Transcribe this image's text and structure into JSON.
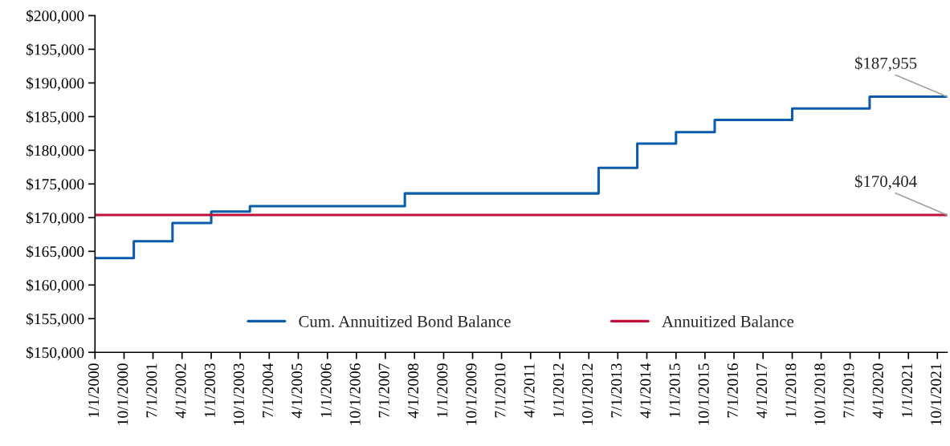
{
  "chart_data": {
    "type": "line",
    "series": [
      {
        "type": "step",
        "name": "Cum. Annuitized Bond Balance",
        "color": "#0b5cad",
        "x": [
          "2000-01-01",
          "2001-01-01",
          "2002-01-01",
          "2003-01-01",
          "2004-01-01",
          "2008-01-01",
          "2013-01-01",
          "2014-01-01",
          "2015-01-01",
          "2016-01-01",
          "2018-01-01",
          "2020-01-01",
          "2022-01-01"
        ],
        "values": [
          164000,
          166500,
          169200,
          170900,
          171700,
          173600,
          177400,
          181000,
          182700,
          184500,
          186200,
          187955,
          187955
        ]
      },
      {
        "name": "Annuitized Balance",
        "color": "#c0103a",
        "x": [
          "2000-01-01",
          "2022-01-01"
        ],
        "values": [
          170404,
          170404
        ]
      }
    ],
    "annotations": [
      {
        "text": "$187,955",
        "x": "2022-01-01",
        "y": 187955
      },
      {
        "text": "$170,404",
        "x": "2022-01-01",
        "y": 170404
      }
    ],
    "xlim": [
      "2000-01-01",
      "2022-01-01"
    ],
    "xticks": [
      {
        "value": "2000-01-01",
        "label": "1/1/2000"
      },
      {
        "value": "2000-10-01",
        "label": "10/1/2000"
      },
      {
        "value": "2001-07-01",
        "label": "7/1/2001"
      },
      {
        "value": "2002-04-01",
        "label": "4/1/2002"
      },
      {
        "value": "2003-01-01",
        "label": "1/1/2003"
      },
      {
        "value": "2003-10-01",
        "label": "10/1/2003"
      },
      {
        "value": "2004-07-01",
        "label": "7/1/2004"
      },
      {
        "value": "2005-04-01",
        "label": "4/1/2005"
      },
      {
        "value": "2006-01-01",
        "label": "1/1/2006"
      },
      {
        "value": "2006-10-01",
        "label": "10/1/2006"
      },
      {
        "value": "2007-07-01",
        "label": "7/1/2007"
      },
      {
        "value": "2008-04-01",
        "label": "4/1/2008"
      },
      {
        "value": "2009-01-01",
        "label": "1/1/2009"
      },
      {
        "value": "2009-10-01",
        "label": "10/1/2009"
      },
      {
        "value": "2010-07-01",
        "label": "7/1/2010"
      },
      {
        "value": "2011-04-01",
        "label": "4/1/2011"
      },
      {
        "value": "2012-01-01",
        "label": "1/1/2012"
      },
      {
        "value": "2012-10-01",
        "label": "10/1/2012"
      },
      {
        "value": "2013-07-01",
        "label": "7/1/2013"
      },
      {
        "value": "2014-04-01",
        "label": "4/1/2014"
      },
      {
        "value": "2015-01-01",
        "label": "1/1/2015"
      },
      {
        "value": "2015-10-01",
        "label": "10/1/2015"
      },
      {
        "value": "2016-07-01",
        "label": "7/1/2016"
      },
      {
        "value": "2017-04-01",
        "label": "4/1/2017"
      },
      {
        "value": "2018-01-01",
        "label": "1/1/2018"
      },
      {
        "value": "2018-10-01",
        "label": "10/1/2018"
      },
      {
        "value": "2019-07-01",
        "label": "7/1/2019"
      },
      {
        "value": "2020-04-01",
        "label": "4/1/2020"
      },
      {
        "value": "2021-01-01",
        "label": "1/1/2021"
      },
      {
        "value": "2021-10-01",
        "label": "10/1/2021"
      }
    ],
    "ylim": [
      150000,
      200000
    ],
    "yticks": [
      {
        "value": 150000,
        "label": "$150,000"
      },
      {
        "value": 155000,
        "label": "$155,000"
      },
      {
        "value": 160000,
        "label": "$160,000"
      },
      {
        "value": 165000,
        "label": "$165,000"
      },
      {
        "value": 170000,
        "label": "$170,000"
      },
      {
        "value": 175000,
        "label": "$175,000"
      },
      {
        "value": 180000,
        "label": "$180,000"
      },
      {
        "value": 185000,
        "label": "$185,000"
      },
      {
        "value": 190000,
        "label": "$190,000"
      },
      {
        "value": 195000,
        "label": "$195,000"
      },
      {
        "value": 200000,
        "label": "$200,000"
      }
    ],
    "grid": false,
    "legend": "bottom",
    "marker": "none",
    "line_style": "solid"
  }
}
